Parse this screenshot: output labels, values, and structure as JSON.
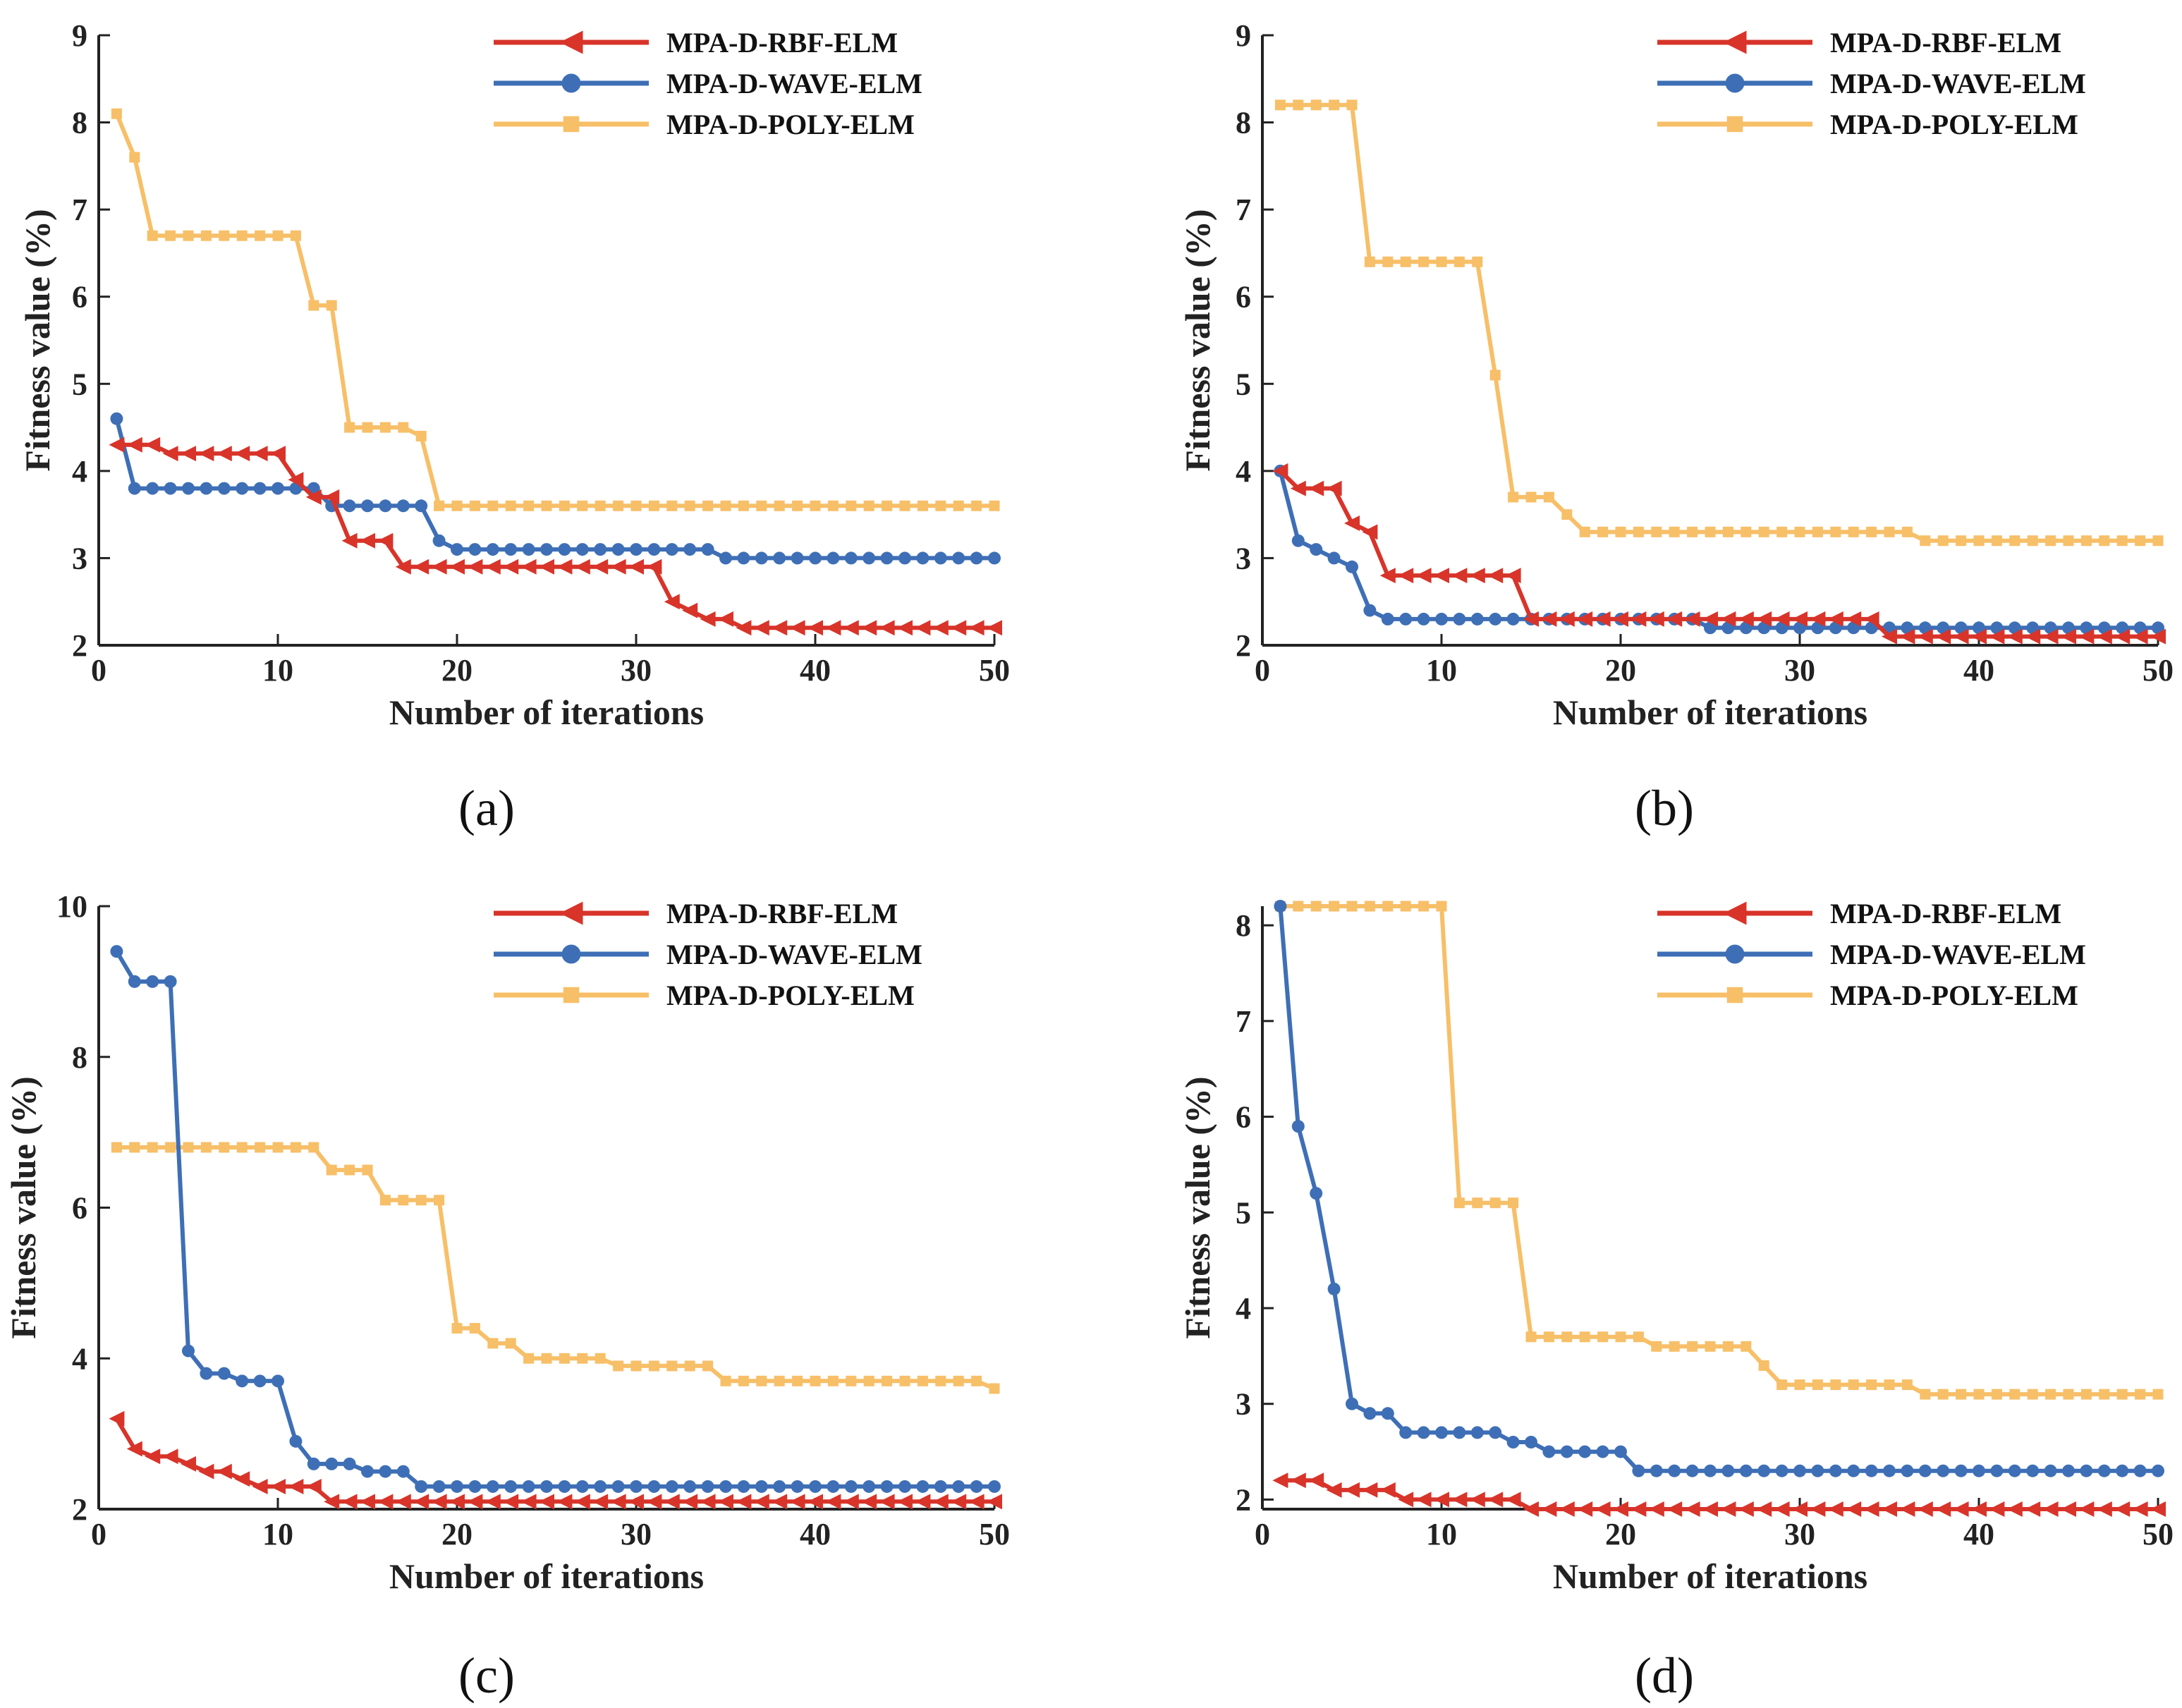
{
  "colors": {
    "rbf": "#D8342A",
    "wave": "#3E6FB6",
    "poly": "#F7BF68",
    "axis": "#222222"
  },
  "chart_data": [
    {
      "type": "line",
      "caption": "(a)",
      "xlabel": "Number of iterations",
      "ylabel": "Fitness value (%)",
      "xlim": [
        0,
        50
      ],
      "ylim": [
        2,
        9
      ],
      "xticks": [
        "0",
        "10",
        "20",
        "30",
        "40",
        "50"
      ],
      "yticks": [
        "2",
        "3",
        "4",
        "5",
        "6",
        "7",
        "8",
        "9"
      ],
      "ytick_values": [
        2,
        3,
        4,
        5,
        6,
        7,
        8,
        9
      ],
      "legend_position": "top-right",
      "series": [
        {
          "name": "MPA-D-RBF-ELM",
          "marker": "triangle-left",
          "color_key": "rbf",
          "values": [
            4.3,
            4.3,
            4.3,
            4.2,
            4.2,
            4.2,
            4.2,
            4.2,
            4.2,
            4.2,
            3.9,
            3.7,
            3.7,
            3.2,
            3.2,
            3.2,
            2.9,
            2.9,
            2.9,
            2.9,
            2.9,
            2.9,
            2.9,
            2.9,
            2.9,
            2.9,
            2.9,
            2.9,
            2.9,
            2.9,
            2.9,
            2.5,
            2.4,
            2.3,
            2.3,
            2.2,
            2.2,
            2.2,
            2.2,
            2.2,
            2.2,
            2.2,
            2.2,
            2.2,
            2.2,
            2.2,
            2.2,
            2.2,
            2.2,
            2.2
          ]
        },
        {
          "name": "MPA-D-WAVE-ELM",
          "marker": "circle",
          "color_key": "wave",
          "values": [
            4.6,
            3.8,
            3.8,
            3.8,
            3.8,
            3.8,
            3.8,
            3.8,
            3.8,
            3.8,
            3.8,
            3.8,
            3.6,
            3.6,
            3.6,
            3.6,
            3.6,
            3.6,
            3.2,
            3.1,
            3.1,
            3.1,
            3.1,
            3.1,
            3.1,
            3.1,
            3.1,
            3.1,
            3.1,
            3.1,
            3.1,
            3.1,
            3.1,
            3.1,
            3.0,
            3.0,
            3.0,
            3.0,
            3.0,
            3.0,
            3.0,
            3.0,
            3.0,
            3.0,
            3.0,
            3.0,
            3.0,
            3.0,
            3.0,
            3.0
          ]
        },
        {
          "name": "MPA-D-POLY-ELM",
          "marker": "square",
          "color_key": "poly",
          "values": [
            8.1,
            7.6,
            6.7,
            6.7,
            6.7,
            6.7,
            6.7,
            6.7,
            6.7,
            6.7,
            6.7,
            5.9,
            5.9,
            4.5,
            4.5,
            4.5,
            4.5,
            4.4,
            3.6,
            3.6,
            3.6,
            3.6,
            3.6,
            3.6,
            3.6,
            3.6,
            3.6,
            3.6,
            3.6,
            3.6,
            3.6,
            3.6,
            3.6,
            3.6,
            3.6,
            3.6,
            3.6,
            3.6,
            3.6,
            3.6,
            3.6,
            3.6,
            3.6,
            3.6,
            3.6,
            3.6,
            3.6,
            3.6,
            3.6,
            3.6
          ]
        }
      ]
    },
    {
      "type": "line",
      "caption": "(b)",
      "xlabel": "Number of iterations",
      "ylabel": "Fitness value (%)",
      "xlim": [
        0,
        50
      ],
      "ylim": [
        2,
        9
      ],
      "xticks": [
        "0",
        "10",
        "20",
        "30",
        "40",
        "50"
      ],
      "yticks": [
        "2",
        "3",
        "4",
        "5",
        "6",
        "7",
        "8",
        "9"
      ],
      "ytick_values": [
        2,
        3,
        4,
        5,
        6,
        7,
        8,
        9
      ],
      "legend_position": "top-right",
      "series": [
        {
          "name": "MPA-D-RBF-ELM",
          "marker": "triangle-left",
          "color_key": "rbf",
          "values": [
            4.0,
            3.8,
            3.8,
            3.8,
            3.4,
            3.3,
            2.8,
            2.8,
            2.8,
            2.8,
            2.8,
            2.8,
            2.8,
            2.8,
            2.3,
            2.3,
            2.3,
            2.3,
            2.3,
            2.3,
            2.3,
            2.3,
            2.3,
            2.3,
            2.3,
            2.3,
            2.3,
            2.3,
            2.3,
            2.3,
            2.3,
            2.3,
            2.3,
            2.3,
            2.1,
            2.1,
            2.1,
            2.1,
            2.1,
            2.1,
            2.1,
            2.1,
            2.1,
            2.1,
            2.1,
            2.1,
            2.1,
            2.1,
            2.1,
            2.1
          ]
        },
        {
          "name": "MPA-D-WAVE-ELM",
          "marker": "circle",
          "color_key": "wave",
          "values": [
            4.0,
            3.2,
            3.1,
            3.0,
            2.9,
            2.4,
            2.3,
            2.3,
            2.3,
            2.3,
            2.3,
            2.3,
            2.3,
            2.3,
            2.3,
            2.3,
            2.3,
            2.3,
            2.3,
            2.3,
            2.3,
            2.3,
            2.3,
            2.3,
            2.2,
            2.2,
            2.2,
            2.2,
            2.2,
            2.2,
            2.2,
            2.2,
            2.2,
            2.2,
            2.2,
            2.2,
            2.2,
            2.2,
            2.2,
            2.2,
            2.2,
            2.2,
            2.2,
            2.2,
            2.2,
            2.2,
            2.2,
            2.2,
            2.2,
            2.2
          ]
        },
        {
          "name": "MPA-D-POLY-ELM",
          "marker": "square",
          "color_key": "poly",
          "values": [
            8.2,
            8.2,
            8.2,
            8.2,
            8.2,
            6.4,
            6.4,
            6.4,
            6.4,
            6.4,
            6.4,
            6.4,
            5.1,
            3.7,
            3.7,
            3.7,
            3.5,
            3.3,
            3.3,
            3.3,
            3.3,
            3.3,
            3.3,
            3.3,
            3.3,
            3.3,
            3.3,
            3.3,
            3.3,
            3.3,
            3.3,
            3.3,
            3.3,
            3.3,
            3.3,
            3.3,
            3.2,
            3.2,
            3.2,
            3.2,
            3.2,
            3.2,
            3.2,
            3.2,
            3.2,
            3.2,
            3.2,
            3.2,
            3.2,
            3.2
          ]
        }
      ]
    },
    {
      "type": "line",
      "caption": "(c)",
      "xlabel": "Number of iterations",
      "ylabel": "Fitness value (%)",
      "xlim": [
        0,
        50
      ],
      "ylim": [
        2,
        10
      ],
      "xticks": [
        "0",
        "10",
        "20",
        "30",
        "40",
        "50"
      ],
      "yticks": [
        "2",
        "4",
        "6",
        "8",
        "10"
      ],
      "ytick_values": [
        2,
        4,
        6,
        8,
        10
      ],
      "legend_position": "top-right",
      "series": [
        {
          "name": "MPA-D-RBF-ELM",
          "marker": "triangle-left",
          "color_key": "rbf",
          "values": [
            3.2,
            2.8,
            2.7,
            2.7,
            2.6,
            2.5,
            2.5,
            2.4,
            2.3,
            2.3,
            2.3,
            2.3,
            2.1,
            2.1,
            2.1,
            2.1,
            2.1,
            2.1,
            2.1,
            2.1,
            2.1,
            2.1,
            2.1,
            2.1,
            2.1,
            2.1,
            2.1,
            2.1,
            2.1,
            2.1,
            2.1,
            2.1,
            2.1,
            2.1,
            2.1,
            2.1,
            2.1,
            2.1,
            2.1,
            2.1,
            2.1,
            2.1,
            2.1,
            2.1,
            2.1,
            2.1,
            2.1,
            2.1,
            2.1,
            2.1
          ]
        },
        {
          "name": "MPA-D-WAVE-ELM",
          "marker": "circle",
          "color_key": "wave",
          "values": [
            9.4,
            9.0,
            9.0,
            9.0,
            4.1,
            3.8,
            3.8,
            3.7,
            3.7,
            3.7,
            2.9,
            2.6,
            2.6,
            2.6,
            2.5,
            2.5,
            2.5,
            2.3,
            2.3,
            2.3,
            2.3,
            2.3,
            2.3,
            2.3,
            2.3,
            2.3,
            2.3,
            2.3,
            2.3,
            2.3,
            2.3,
            2.3,
            2.3,
            2.3,
            2.3,
            2.3,
            2.3,
            2.3,
            2.3,
            2.3,
            2.3,
            2.3,
            2.3,
            2.3,
            2.3,
            2.3,
            2.3,
            2.3,
            2.3,
            2.3
          ]
        },
        {
          "name": "MPA-D-POLY-ELM",
          "marker": "square",
          "color_key": "poly",
          "values": [
            6.8,
            6.8,
            6.8,
            6.8,
            6.8,
            6.8,
            6.8,
            6.8,
            6.8,
            6.8,
            6.8,
            6.8,
            6.5,
            6.5,
            6.5,
            6.1,
            6.1,
            6.1,
            6.1,
            4.4,
            4.4,
            4.2,
            4.2,
            4.0,
            4.0,
            4.0,
            4.0,
            4.0,
            3.9,
            3.9,
            3.9,
            3.9,
            3.9,
            3.9,
            3.7,
            3.7,
            3.7,
            3.7,
            3.7,
            3.7,
            3.7,
            3.7,
            3.7,
            3.7,
            3.7,
            3.7,
            3.7,
            3.7,
            3.7,
            3.6
          ]
        }
      ]
    },
    {
      "type": "line",
      "caption": "(d)",
      "xlabel": "Number of iterations",
      "ylabel": "Fitness value (%)",
      "xlim": [
        0,
        50
      ],
      "ylim": [
        1.9,
        8.2
      ],
      "xticks": [
        "0",
        "10",
        "20",
        "30",
        "40",
        "50"
      ],
      "yticks": [
        "2",
        "3",
        "4",
        "5",
        "6",
        "7",
        "8"
      ],
      "ytick_values": [
        2,
        3,
        4,
        5,
        6,
        7,
        8
      ],
      "legend_position": "top-right",
      "series": [
        {
          "name": "MPA-D-RBF-ELM",
          "marker": "triangle-left",
          "color_key": "rbf",
          "values": [
            2.2,
            2.2,
            2.2,
            2.1,
            2.1,
            2.1,
            2.1,
            2.0,
            2.0,
            2.0,
            2.0,
            2.0,
            2.0,
            2.0,
            1.9,
            1.9,
            1.9,
            1.9,
            1.9,
            1.9,
            1.9,
            1.9,
            1.9,
            1.9,
            1.9,
            1.9,
            1.9,
            1.9,
            1.9,
            1.9,
            1.9,
            1.9,
            1.9,
            1.9,
            1.9,
            1.9,
            1.9,
            1.9,
            1.9,
            1.9,
            1.9,
            1.9,
            1.9,
            1.9,
            1.9,
            1.9,
            1.9,
            1.9,
            1.9,
            1.9
          ]
        },
        {
          "name": "MPA-D-WAVE-ELM",
          "marker": "circle",
          "color_key": "wave",
          "values": [
            8.2,
            5.9,
            5.2,
            4.2,
            3.0,
            2.9,
            2.9,
            2.7,
            2.7,
            2.7,
            2.7,
            2.7,
            2.7,
            2.6,
            2.6,
            2.5,
            2.5,
            2.5,
            2.5,
            2.5,
            2.3,
            2.3,
            2.3,
            2.3,
            2.3,
            2.3,
            2.3,
            2.3,
            2.3,
            2.3,
            2.3,
            2.3,
            2.3,
            2.3,
            2.3,
            2.3,
            2.3,
            2.3,
            2.3,
            2.3,
            2.3,
            2.3,
            2.3,
            2.3,
            2.3,
            2.3,
            2.3,
            2.3,
            2.3,
            2.3
          ]
        },
        {
          "name": "MPA-D-POLY-ELM",
          "marker": "square",
          "color_key": "poly",
          "values": [
            8.2,
            8.2,
            8.2,
            8.2,
            8.2,
            8.2,
            8.2,
            8.2,
            8.2,
            8.2,
            5.1,
            5.1,
            5.1,
            5.1,
            3.7,
            3.7,
            3.7,
            3.7,
            3.7,
            3.7,
            3.7,
            3.6,
            3.6,
            3.6,
            3.6,
            3.6,
            3.6,
            3.4,
            3.2,
            3.2,
            3.2,
            3.2,
            3.2,
            3.2,
            3.2,
            3.2,
            3.1,
            3.1,
            3.1,
            3.1,
            3.1,
            3.1,
            3.1,
            3.1,
            3.1,
            3.1,
            3.1,
            3.1,
            3.1,
            3.1
          ]
        }
      ]
    }
  ]
}
